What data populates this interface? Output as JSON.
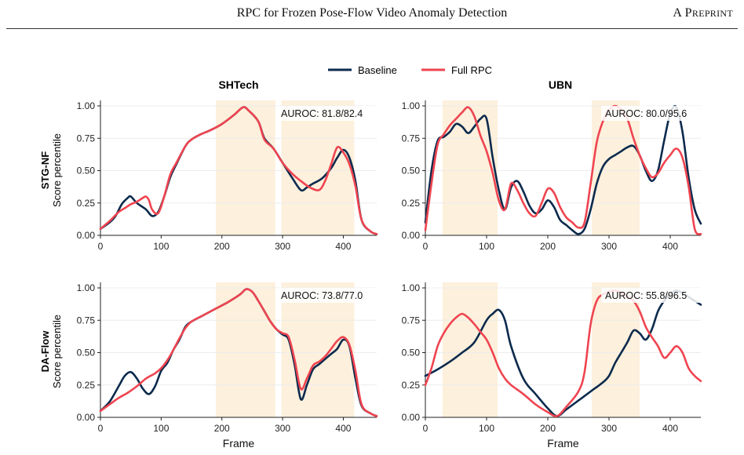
{
  "header": {
    "title": "RPC for Frozen Pose-Flow Video Anomaly Detection",
    "right": "A Preprint"
  },
  "legend": {
    "items": [
      {
        "label": "Baseline",
        "color": "#0c2a4d"
      },
      {
        "label": "Full RPC",
        "color": "#ef4450"
      }
    ]
  },
  "columns": [
    "SHTech",
    "UBN"
  ],
  "rows": [
    {
      "label": "STG-NF",
      "ylabel": "Score percentile"
    },
    {
      "label": "DA-Flow",
      "ylabel": "Score percentile"
    }
  ],
  "colors": {
    "baseline": "#0c2a4d",
    "rpc": "#ef4450",
    "shade": "#fdf0dc"
  },
  "chart_data": [
    {
      "type": "line",
      "row": "STG-NF",
      "column": "SHTech",
      "xlim": [
        0,
        455
      ],
      "ylim": [
        0,
        1
      ],
      "xticks": [
        0,
        100,
        200,
        300,
        400
      ],
      "yticks": [
        "0.00",
        "0.25",
        "0.50",
        "0.75",
        "1.00"
      ],
      "xlabel": "",
      "ylabel": "Score percentile",
      "annotation": "AUROC: 81.8/82.4",
      "shaded_regions": [
        [
          190,
          288
        ],
        [
          298,
          418
        ]
      ],
      "series": [
        {
          "name": "Baseline",
          "x": [
            0,
            15,
            25,
            35,
            45,
            50,
            60,
            75,
            85,
            95,
            105,
            115,
            125,
            140,
            150,
            165,
            180,
            200,
            220,
            235,
            245,
            260,
            270,
            285,
            300,
            315,
            330,
            340,
            350,
            365,
            380,
            390,
            400,
            410,
            420,
            430,
            445,
            455
          ],
          "y": [
            0.05,
            0.1,
            0.15,
            0.24,
            0.29,
            0.3,
            0.25,
            0.2,
            0.15,
            0.18,
            0.3,
            0.45,
            0.55,
            0.69,
            0.74,
            0.78,
            0.81,
            0.86,
            0.93,
            0.99,
            0.96,
            0.88,
            0.75,
            0.67,
            0.56,
            0.45,
            0.35,
            0.37,
            0.4,
            0.44,
            0.52,
            0.6,
            0.66,
            0.6,
            0.42,
            0.12,
            0.03,
            0.01
          ]
        },
        {
          "name": "Full RPC",
          "x": [
            0,
            15,
            30,
            40,
            50,
            60,
            70,
            75,
            80,
            85,
            95,
            105,
            115,
            125,
            140,
            150,
            165,
            180,
            200,
            220,
            235,
            245,
            260,
            270,
            285,
            300,
            315,
            330,
            345,
            360,
            370,
            380,
            390,
            400,
            410,
            420,
            430,
            445,
            455
          ],
          "y": [
            0.05,
            0.11,
            0.18,
            0.21,
            0.24,
            0.26,
            0.29,
            0.3,
            0.27,
            0.2,
            0.17,
            0.3,
            0.47,
            0.56,
            0.69,
            0.74,
            0.78,
            0.81,
            0.86,
            0.93,
            0.99,
            0.96,
            0.88,
            0.74,
            0.67,
            0.56,
            0.48,
            0.42,
            0.37,
            0.35,
            0.42,
            0.55,
            0.68,
            0.64,
            0.55,
            0.38,
            0.12,
            0.03,
            0.01
          ]
        }
      ]
    },
    {
      "type": "line",
      "row": "STG-NF",
      "column": "UBN",
      "xlim": [
        0,
        450
      ],
      "ylim": [
        0,
        1
      ],
      "xticks": [
        0,
        100,
        200,
        300,
        400
      ],
      "yticks": [
        "0.00",
        "0.25",
        "0.50",
        "0.75",
        "1.00"
      ],
      "xlabel": "",
      "ylabel": "",
      "annotation": "AUROC: 80.0/95.6",
      "shaded_regions": [
        [
          28,
          118
        ],
        [
          272,
          350
        ]
      ],
      "series": [
        {
          "name": "Baseline",
          "x": [
            0,
            10,
            20,
            30,
            40,
            50,
            60,
            70,
            80,
            90,
            100,
            110,
            120,
            130,
            140,
            150,
            160,
            170,
            180,
            190,
            200,
            210,
            220,
            230,
            240,
            250,
            260,
            270,
            280,
            290,
            300,
            310,
            320,
            330,
            340,
            350,
            360,
            370,
            380,
            390,
            400,
            410,
            420,
            430,
            440,
            450
          ],
          "y": [
            0.1,
            0.5,
            0.73,
            0.76,
            0.8,
            0.86,
            0.84,
            0.79,
            0.84,
            0.9,
            0.9,
            0.6,
            0.35,
            0.2,
            0.37,
            0.42,
            0.34,
            0.23,
            0.17,
            0.2,
            0.27,
            0.22,
            0.12,
            0.08,
            0.04,
            0.01,
            0.05,
            0.2,
            0.4,
            0.53,
            0.59,
            0.62,
            0.65,
            0.68,
            0.69,
            0.62,
            0.5,
            0.42,
            0.5,
            0.73,
            0.94,
            0.99,
            0.8,
            0.45,
            0.2,
            0.09
          ]
        },
        {
          "name": "Full RPC",
          "x": [
            0,
            10,
            20,
            30,
            40,
            50,
            60,
            70,
            80,
            90,
            100,
            110,
            120,
            130,
            140,
            150,
            160,
            170,
            180,
            190,
            200,
            210,
            220,
            230,
            240,
            250,
            260,
            270,
            280,
            290,
            300,
            310,
            320,
            330,
            340,
            350,
            360,
            370,
            380,
            390,
            400,
            410,
            420,
            430,
            440,
            450
          ],
          "y": [
            0.04,
            0.4,
            0.7,
            0.78,
            0.85,
            0.9,
            0.95,
            0.99,
            0.92,
            0.77,
            0.65,
            0.48,
            0.27,
            0.2,
            0.4,
            0.35,
            0.25,
            0.17,
            0.15,
            0.25,
            0.36,
            0.33,
            0.22,
            0.14,
            0.1,
            0.06,
            0.1,
            0.4,
            0.72,
            0.88,
            0.97,
            1.0,
            0.97,
            0.9,
            0.75,
            0.62,
            0.52,
            0.45,
            0.48,
            0.56,
            0.62,
            0.67,
            0.6,
            0.38,
            0.05,
            0.01
          ]
        }
      ]
    },
    {
      "type": "line",
      "row": "DA-Flow",
      "column": "SHTech",
      "xlim": [
        0,
        455
      ],
      "ylim": [
        0,
        1
      ],
      "xticks": [
        0,
        100,
        200,
        300,
        400
      ],
      "yticks": [
        "0.00",
        "0.25",
        "0.50",
        "0.75",
        "1.00"
      ],
      "xlabel": "Frame",
      "ylabel": "Score percentile",
      "annotation": "AUROC: 73.8/77.0",
      "shaded_regions": [
        [
          190,
          288
        ],
        [
          298,
          418
        ]
      ],
      "series": [
        {
          "name": "Baseline",
          "x": [
            0,
            15,
            30,
            40,
            50,
            60,
            70,
            80,
            90,
            100,
            110,
            120,
            130,
            140,
            150,
            170,
            190,
            210,
            230,
            240,
            250,
            260,
            270,
            280,
            290,
            300,
            310,
            320,
            330,
            340,
            350,
            360,
            370,
            380,
            390,
            400,
            410,
            420,
            430,
            445,
            455
          ],
          "y": [
            0.05,
            0.12,
            0.24,
            0.32,
            0.35,
            0.3,
            0.22,
            0.18,
            0.24,
            0.36,
            0.42,
            0.52,
            0.6,
            0.7,
            0.74,
            0.79,
            0.84,
            0.89,
            0.95,
            0.99,
            0.97,
            0.9,
            0.82,
            0.74,
            0.68,
            0.64,
            0.6,
            0.4,
            0.14,
            0.25,
            0.37,
            0.41,
            0.45,
            0.49,
            0.53,
            0.6,
            0.55,
            0.3,
            0.09,
            0.03,
            0.01
          ]
        },
        {
          "name": "Full RPC",
          "x": [
            0,
            15,
            30,
            45,
            60,
            75,
            90,
            100,
            110,
            120,
            130,
            140,
            150,
            170,
            190,
            210,
            230,
            240,
            250,
            260,
            270,
            280,
            290,
            300,
            310,
            320,
            330,
            340,
            350,
            360,
            370,
            380,
            390,
            400,
            410,
            420,
            430,
            445,
            455
          ],
          "y": [
            0.05,
            0.1,
            0.15,
            0.19,
            0.24,
            0.3,
            0.34,
            0.38,
            0.44,
            0.52,
            0.61,
            0.69,
            0.74,
            0.79,
            0.84,
            0.89,
            0.95,
            0.99,
            0.97,
            0.9,
            0.82,
            0.74,
            0.68,
            0.65,
            0.62,
            0.44,
            0.22,
            0.3,
            0.4,
            0.43,
            0.47,
            0.53,
            0.59,
            0.62,
            0.56,
            0.36,
            0.1,
            0.03,
            0.01
          ]
        }
      ]
    },
    {
      "type": "line",
      "row": "DA-Flow",
      "column": "UBN",
      "xlim": [
        0,
        450
      ],
      "ylim": [
        0,
        1
      ],
      "xticks": [
        0,
        100,
        200,
        300,
        400
      ],
      "yticks": [
        "0.00",
        "0.25",
        "0.50",
        "0.75",
        "1.00"
      ],
      "xlabel": "Frame",
      "ylabel": "",
      "annotation": "AUROC: 55.8/96.5",
      "shaded_regions": [
        [
          28,
          118
        ],
        [
          272,
          350
        ]
      ],
      "series": [
        {
          "name": "Baseline",
          "x": [
            0,
            20,
            40,
            60,
            80,
            100,
            110,
            120,
            130,
            140,
            160,
            180,
            200,
            215,
            230,
            250,
            270,
            290,
            300,
            310,
            320,
            330,
            340,
            350,
            360,
            370,
            380,
            390,
            400,
            410,
            420,
            430,
            440,
            450
          ],
          "y": [
            0.32,
            0.37,
            0.43,
            0.5,
            0.58,
            0.75,
            0.8,
            0.83,
            0.75,
            0.55,
            0.3,
            0.18,
            0.07,
            0.01,
            0.06,
            0.13,
            0.2,
            0.27,
            0.32,
            0.42,
            0.5,
            0.58,
            0.67,
            0.65,
            0.6,
            0.68,
            0.82,
            0.9,
            0.95,
            0.98,
            0.96,
            0.93,
            0.9,
            0.87
          ]
        },
        {
          "name": "Full RPC",
          "x": [
            0,
            10,
            20,
            30,
            40,
            50,
            60,
            70,
            80,
            90,
            100,
            110,
            120,
            130,
            140,
            160,
            180,
            200,
            215,
            230,
            250,
            260,
            270,
            280,
            290,
            300,
            310,
            320,
            330,
            340,
            350,
            360,
            370,
            380,
            390,
            400,
            410,
            420,
            430,
            440,
            450
          ],
          "y": [
            0.25,
            0.38,
            0.55,
            0.65,
            0.72,
            0.77,
            0.8,
            0.77,
            0.72,
            0.66,
            0.6,
            0.5,
            0.38,
            0.3,
            0.25,
            0.18,
            0.1,
            0.04,
            0.01,
            0.08,
            0.2,
            0.35,
            0.72,
            0.9,
            0.95,
            0.97,
            0.98,
            0.96,
            0.93,
            0.9,
            0.82,
            0.7,
            0.62,
            0.55,
            0.46,
            0.5,
            0.55,
            0.5,
            0.38,
            0.32,
            0.28
          ]
        }
      ]
    }
  ]
}
